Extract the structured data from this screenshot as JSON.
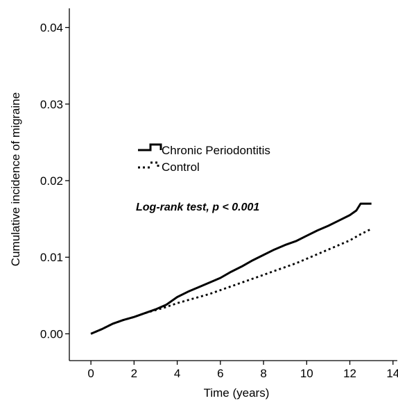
{
  "chart_data": {
    "type": "line",
    "title": "",
    "xlabel": "Time (years)",
    "ylabel": "Cumulative incidence of migraine",
    "xlim": [
      -1.0,
      14.2
    ],
    "ylim": [
      -0.0035,
      0.0425
    ],
    "xticks": [
      0,
      2,
      4,
      6,
      8,
      10,
      12,
      14
    ],
    "xtick_labels": [
      "0",
      "2",
      "4",
      "6",
      "8",
      "10",
      "12",
      "14"
    ],
    "yticks": [
      0.0,
      0.01,
      0.02,
      0.03,
      0.04
    ],
    "ytick_labels": [
      "0.00",
      "0.01",
      "0.02",
      "0.03",
      "0.04"
    ],
    "grid": false,
    "legend": {
      "placement": "upper-left"
    },
    "annotation": "Log-rank test, p < 0.001",
    "series": [
      {
        "name": "Chronic Periodontitis",
        "line_style": "solid-step",
        "color": "#000000",
        "x": [
          0,
          0.5,
          1,
          1.5,
          2,
          2.5,
          3,
          3.5,
          4,
          4.5,
          5,
          5.5,
          6,
          6.5,
          7,
          7.5,
          8,
          8.5,
          9,
          9.5,
          10,
          10.5,
          11,
          11.5,
          12,
          12.3,
          12.5,
          12.8,
          13.0
        ],
        "y": [
          0.0,
          0.0006,
          0.0013,
          0.0018,
          0.0022,
          0.0027,
          0.0032,
          0.0038,
          0.0048,
          0.0055,
          0.0061,
          0.0067,
          0.0073,
          0.0081,
          0.0088,
          0.0096,
          0.0103,
          0.011,
          0.0116,
          0.0121,
          0.0128,
          0.0135,
          0.0141,
          0.0148,
          0.0155,
          0.0161,
          0.017,
          0.017,
          0.017
        ]
      },
      {
        "name": "Control",
        "line_style": "dotted",
        "color": "#000000",
        "x": [
          0,
          0.5,
          1,
          1.5,
          2,
          2.5,
          3,
          3.5,
          4,
          4.5,
          5,
          5.5,
          6,
          6.5,
          7,
          7.5,
          8,
          8.5,
          9,
          9.5,
          10,
          10.5,
          11,
          11.5,
          12,
          12.5,
          13.0
        ],
        "y": [
          0.0,
          0.0006,
          0.0013,
          0.0018,
          0.0022,
          0.0027,
          0.0031,
          0.0035,
          0.004,
          0.0044,
          0.0048,
          0.0052,
          0.0057,
          0.0062,
          0.0067,
          0.0072,
          0.0077,
          0.0082,
          0.0087,
          0.0092,
          0.0098,
          0.0104,
          0.011,
          0.0116,
          0.0122,
          0.013,
          0.0137
        ]
      }
    ]
  }
}
